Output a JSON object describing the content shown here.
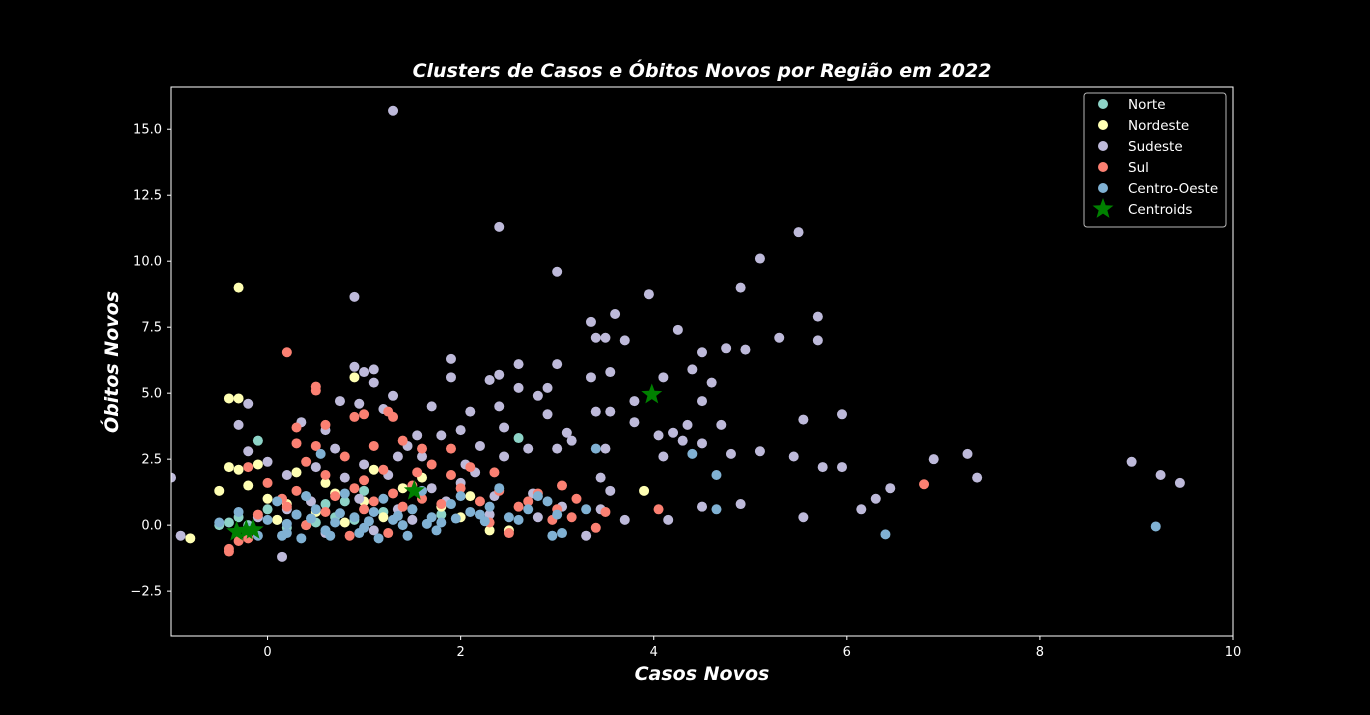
{
  "chart_data": {
    "type": "scatter",
    "title": "Clusters de Casos e Óbitos Novos por Região em 2022",
    "xlabel": "Casos Novos",
    "ylabel": "Óbitos Novos",
    "xlim": [
      -1.0,
      10.0
    ],
    "ylim": [
      -4.2,
      16.6
    ],
    "xticks": [
      0,
      2,
      4,
      6,
      8,
      10
    ],
    "xtick_labels": [
      "0",
      "2",
      "4",
      "6",
      "8",
      "10"
    ],
    "yticks": [
      -2.5,
      0.0,
      2.5,
      5.0,
      7.5,
      10.0,
      12.5,
      15.0
    ],
    "ytick_labels": [
      "−2.5",
      "0.0",
      "2.5",
      "5.0",
      "7.5",
      "10.0",
      "12.5",
      "15.0"
    ],
    "grid": false,
    "legend_position": "top-right",
    "background": "#000000",
    "series": [
      {
        "name": "Norte",
        "color": "#8dd3c7",
        "points": [
          [
            -0.4,
            0.1
          ],
          [
            -0.3,
            0.3
          ],
          [
            -0.2,
            0.0
          ],
          [
            0.1,
            0.2
          ],
          [
            0.3,
            0.4
          ],
          [
            0.5,
            0.1
          ],
          [
            0.7,
            0.3
          ],
          [
            0.9,
            0.2
          ],
          [
            1.2,
            0.5
          ],
          [
            -0.1,
            3.2
          ],
          [
            0.4,
            1.1
          ],
          [
            0.6,
            0.8
          ],
          [
            1.0,
            1.3
          ],
          [
            1.5,
            0.6
          ],
          [
            2.6,
            3.3
          ],
          [
            0.2,
            -0.1
          ],
          [
            -0.5,
            0.0
          ],
          [
            1.8,
            0.4
          ],
          [
            0.8,
            0.9
          ],
          [
            0.0,
            0.6
          ]
        ]
      },
      {
        "name": "Nordeste",
        "color": "#ffffb3",
        "points": [
          [
            -0.3,
            9.0
          ],
          [
            -0.4,
            4.8
          ],
          [
            -0.3,
            4.8
          ],
          [
            -0.4,
            2.2
          ],
          [
            -0.3,
            2.1
          ],
          [
            -0.8,
            -0.5
          ],
          [
            0.9,
            5.6
          ],
          [
            3.9,
            1.3
          ],
          [
            -0.2,
            1.5
          ],
          [
            0.0,
            1.0
          ],
          [
            0.2,
            0.8
          ],
          [
            0.5,
            0.5
          ],
          [
            0.7,
            1.2
          ],
          [
            1.0,
            0.9
          ],
          [
            1.4,
            1.4
          ],
          [
            1.8,
            0.7
          ],
          [
            2.1,
            1.1
          ],
          [
            2.5,
            -0.2
          ],
          [
            2.3,
            -0.2
          ],
          [
            -0.1,
            2.3
          ],
          [
            0.3,
            2.0
          ],
          [
            0.6,
            1.6
          ],
          [
            1.2,
            0.3
          ],
          [
            1.6,
            1.8
          ],
          [
            0.1,
            0.2
          ],
          [
            -0.5,
            1.3
          ],
          [
            0.4,
            0.0
          ],
          [
            2.0,
            0.3
          ],
          [
            1.1,
            2.1
          ],
          [
            0.8,
            0.1
          ]
        ]
      },
      {
        "name": "Sudeste",
        "color": "#bebada",
        "points": [
          [
            1.3,
            15.7
          ],
          [
            2.4,
            11.3
          ],
          [
            5.5,
            11.1
          ],
          [
            5.1,
            10.1
          ],
          [
            3.0,
            9.6
          ],
          [
            4.9,
            9.0
          ],
          [
            3.95,
            8.75
          ],
          [
            0.9,
            8.65
          ],
          [
            3.6,
            8.0
          ],
          [
            5.7,
            7.9
          ],
          [
            3.35,
            7.7
          ],
          [
            4.25,
            7.4
          ],
          [
            3.4,
            7.1
          ],
          [
            3.5,
            7.1
          ],
          [
            5.3,
            7.1
          ],
          [
            3.7,
            7.0
          ],
          [
            5.7,
            7.0
          ],
          [
            4.75,
            6.7
          ],
          [
            4.95,
            6.65
          ],
          [
            4.5,
            6.55
          ],
          [
            1.9,
            6.3
          ],
          [
            2.6,
            6.1
          ],
          [
            3.0,
            6.1
          ],
          [
            0.9,
            6.0
          ],
          [
            1.1,
            5.9
          ],
          [
            1.0,
            5.8
          ],
          [
            3.55,
            5.8
          ],
          [
            4.4,
            5.9
          ],
          [
            2.4,
            5.7
          ],
          [
            3.35,
            5.6
          ],
          [
            4.1,
            5.6
          ],
          [
            1.9,
            5.6
          ],
          [
            2.3,
            5.5
          ],
          [
            1.1,
            5.4
          ],
          [
            4.6,
            5.4
          ],
          [
            2.6,
            5.2
          ],
          [
            2.9,
            5.2
          ],
          [
            3.8,
            4.7
          ],
          [
            4.5,
            4.7
          ],
          [
            2.8,
            4.9
          ],
          [
            1.3,
            4.9
          ],
          [
            0.95,
            4.6
          ],
          [
            1.2,
            4.4
          ],
          [
            2.4,
            4.5
          ],
          [
            3.4,
            4.3
          ],
          [
            3.55,
            4.3
          ],
          [
            2.1,
            4.3
          ],
          [
            1.7,
            4.5
          ],
          [
            2.9,
            4.2
          ],
          [
            5.95,
            4.2
          ],
          [
            5.55,
            4.0
          ],
          [
            3.8,
            3.9
          ],
          [
            4.7,
            3.8
          ],
          [
            4.35,
            3.8
          ],
          [
            2.0,
            3.6
          ],
          [
            3.1,
            3.5
          ],
          [
            4.2,
            3.5
          ],
          [
            4.05,
            3.4
          ],
          [
            3.15,
            3.2
          ],
          [
            4.3,
            3.2
          ],
          [
            4.5,
            3.1
          ],
          [
            3.5,
            2.9
          ],
          [
            4.8,
            2.7
          ],
          [
            5.1,
            2.8
          ],
          [
            5.45,
            2.6
          ],
          [
            4.1,
            2.6
          ],
          [
            6.9,
            2.5
          ],
          [
            7.25,
            2.7
          ],
          [
            5.75,
            2.2
          ],
          [
            5.95,
            2.2
          ],
          [
            8.95,
            2.4
          ],
          [
            7.35,
            1.8
          ],
          [
            9.25,
            1.9
          ],
          [
            9.45,
            1.6
          ],
          [
            6.45,
            1.4
          ],
          [
            6.3,
            1.0
          ],
          [
            6.15,
            0.6
          ],
          [
            5.55,
            0.3
          ],
          [
            4.9,
            0.8
          ],
          [
            4.5,
            0.7
          ],
          [
            3.7,
            0.2
          ],
          [
            4.15,
            0.2
          ],
          [
            3.3,
            -0.4
          ],
          [
            -1.0,
            1.8
          ],
          [
            -0.9,
            -0.4
          ],
          [
            -0.3,
            3.8
          ],
          [
            -0.2,
            4.6
          ],
          [
            -0.2,
            2.8
          ],
          [
            0.0,
            2.4
          ],
          [
            0.2,
            1.9
          ],
          [
            0.35,
            3.9
          ],
          [
            0.6,
            3.6
          ],
          [
            0.75,
            4.7
          ],
          [
            1.45,
            3.0
          ],
          [
            1.55,
            3.4
          ],
          [
            1.8,
            3.4
          ],
          [
            2.2,
            3.0
          ],
          [
            2.45,
            2.6
          ],
          [
            2.7,
            2.9
          ],
          [
            3.0,
            2.9
          ],
          [
            3.45,
            1.8
          ],
          [
            3.55,
            1.3
          ],
          [
            2.15,
            2.0
          ],
          [
            1.6,
            2.6
          ],
          [
            1.0,
            2.3
          ],
          [
            0.5,
            2.2
          ],
          [
            0.2,
            0.6
          ],
          [
            0.8,
            1.8
          ],
          [
            1.25,
            1.9
          ],
          [
            1.7,
            1.4
          ],
          [
            2.0,
            1.6
          ],
          [
            2.35,
            1.1
          ],
          [
            2.75,
            1.2
          ],
          [
            3.05,
            0.7
          ],
          [
            3.45,
            0.6
          ],
          [
            0.15,
            -1.2
          ],
          [
            -0.1,
            0.3
          ],
          [
            0.45,
            0.9
          ],
          [
            0.95,
            1.0
          ],
          [
            1.35,
            0.6
          ],
          [
            1.85,
            0.9
          ],
          [
            2.3,
            0.4
          ],
          [
            2.8,
            0.3
          ],
          [
            1.1,
            -0.2
          ],
          [
            0.6,
            -0.3
          ],
          [
            1.5,
            0.2
          ],
          [
            2.05,
            2.3
          ],
          [
            1.35,
            2.6
          ],
          [
            0.7,
            2.9
          ],
          [
            2.45,
            3.7
          ]
        ]
      },
      {
        "name": "Sul",
        "color": "#fb8072",
        "points": [
          [
            0.2,
            6.55
          ],
          [
            0.5,
            5.25
          ],
          [
            0.5,
            5.1
          ],
          [
            0.9,
            4.1
          ],
          [
            1.0,
            4.2
          ],
          [
            1.25,
            4.3
          ],
          [
            1.3,
            4.1
          ],
          [
            0.6,
            3.8
          ],
          [
            0.3,
            3.7
          ],
          [
            0.5,
            3.0
          ],
          [
            0.3,
            3.1
          ],
          [
            1.1,
            3.0
          ],
          [
            1.4,
            3.2
          ],
          [
            1.6,
            2.9
          ],
          [
            1.9,
            2.9
          ],
          [
            0.8,
            2.6
          ],
          [
            0.4,
            2.4
          ],
          [
            1.2,
            2.1
          ],
          [
            1.7,
            2.3
          ],
          [
            2.1,
            2.2
          ],
          [
            2.35,
            2.0
          ],
          [
            0.6,
            1.9
          ],
          [
            1.0,
            1.7
          ],
          [
            1.5,
            1.5
          ],
          [
            2.0,
            1.4
          ],
          [
            2.4,
            1.3
          ],
          [
            2.8,
            1.2
          ],
          [
            3.2,
            1.0
          ],
          [
            3.0,
            0.6
          ],
          [
            2.6,
            0.7
          ],
          [
            2.2,
            0.9
          ],
          [
            1.8,
            0.8
          ],
          [
            1.4,
            0.7
          ],
          [
            1.0,
            0.6
          ],
          [
            0.6,
            0.5
          ],
          [
            0.2,
            0.7
          ],
          [
            -0.1,
            0.4
          ],
          [
            -0.3,
            -0.6
          ],
          [
            -0.4,
            -0.9
          ],
          [
            -0.4,
            -1.0
          ],
          [
            -0.2,
            2.2
          ],
          [
            0.0,
            1.6
          ],
          [
            0.3,
            1.3
          ],
          [
            0.7,
            1.1
          ],
          [
            1.1,
            0.9
          ],
          [
            1.6,
            1.0
          ],
          [
            2.5,
            -0.3
          ],
          [
            2.95,
            0.2
          ],
          [
            3.5,
            0.5
          ],
          [
            4.05,
            0.6
          ],
          [
            6.8,
            1.55
          ],
          [
            3.4,
            -0.1
          ],
          [
            2.3,
            0.1
          ],
          [
            1.25,
            -0.3
          ],
          [
            0.85,
            -0.4
          ],
          [
            0.4,
            0.0
          ],
          [
            -0.2,
            -0.5
          ],
          [
            1.55,
            2.0
          ],
          [
            1.9,
            1.9
          ],
          [
            0.15,
            1.0
          ],
          [
            0.9,
            1.4
          ],
          [
            1.3,
            1.2
          ],
          [
            2.7,
            0.9
          ],
          [
            3.05,
            1.5
          ],
          [
            3.15,
            0.3
          ]
        ]
      },
      {
        "name": "Centro-Oeste",
        "color": "#80b1d3",
        "points": [
          [
            9.2,
            -0.05
          ],
          [
            6.4,
            -0.35
          ],
          [
            4.65,
            1.9
          ],
          [
            4.4,
            2.7
          ],
          [
            4.65,
            0.6
          ],
          [
            3.4,
            2.9
          ],
          [
            2.95,
            -0.4
          ],
          [
            3.05,
            -0.3
          ],
          [
            3.3,
            0.6
          ],
          [
            2.9,
            0.9
          ],
          [
            2.6,
            0.2
          ],
          [
            2.2,
            0.4
          ],
          [
            1.8,
            0.1
          ],
          [
            1.4,
            0.0
          ],
          [
            1.0,
            -0.1
          ],
          [
            0.6,
            -0.2
          ],
          [
            0.2,
            -0.3
          ],
          [
            -0.2,
            -0.1
          ],
          [
            -0.5,
            0.1
          ],
          [
            0.0,
            0.2
          ],
          [
            0.3,
            0.4
          ],
          [
            0.5,
            0.6
          ],
          [
            0.7,
            0.1
          ],
          [
            0.9,
            0.3
          ],
          [
            1.1,
            0.5
          ],
          [
            1.3,
            0.2
          ],
          [
            1.5,
            0.6
          ],
          [
            1.7,
            0.3
          ],
          [
            1.9,
            0.8
          ],
          [
            2.1,
            0.5
          ],
          [
            2.3,
            0.7
          ],
          [
            2.5,
            0.3
          ],
          [
            2.7,
            0.6
          ],
          [
            2.8,
            1.1
          ],
          [
            3.0,
            0.4
          ],
          [
            0.1,
            0.9
          ],
          [
            0.4,
            1.1
          ],
          [
            0.8,
            1.2
          ],
          [
            1.2,
            1.0
          ],
          [
            1.6,
            1.3
          ],
          [
            2.0,
            1.1
          ],
          [
            2.4,
            1.4
          ],
          [
            0.55,
            2.7
          ],
          [
            0.15,
            -0.4
          ],
          [
            0.35,
            -0.5
          ],
          [
            0.65,
            -0.4
          ],
          [
            0.95,
            -0.3
          ],
          [
            1.15,
            -0.5
          ],
          [
            1.45,
            -0.4
          ],
          [
            1.75,
            -0.2
          ],
          [
            -0.1,
            -0.4
          ],
          [
            -0.3,
            0.5
          ],
          [
            0.2,
            0.05
          ],
          [
            0.45,
            0.25
          ],
          [
            0.75,
            0.45
          ],
          [
            1.05,
            0.15
          ],
          [
            1.35,
            0.35
          ],
          [
            1.65,
            0.05
          ],
          [
            1.95,
            0.25
          ],
          [
            2.25,
            0.15
          ]
        ]
      },
      {
        "name": "Centroids",
        "color": "#008000",
        "marker": "star",
        "points": [
          [
            3.98,
            4.95
          ],
          [
            1.52,
            1.3
          ],
          [
            -0.32,
            -0.25
          ],
          [
            -0.22,
            -0.2
          ],
          [
            -0.15,
            -0.18
          ]
        ]
      }
    ]
  }
}
